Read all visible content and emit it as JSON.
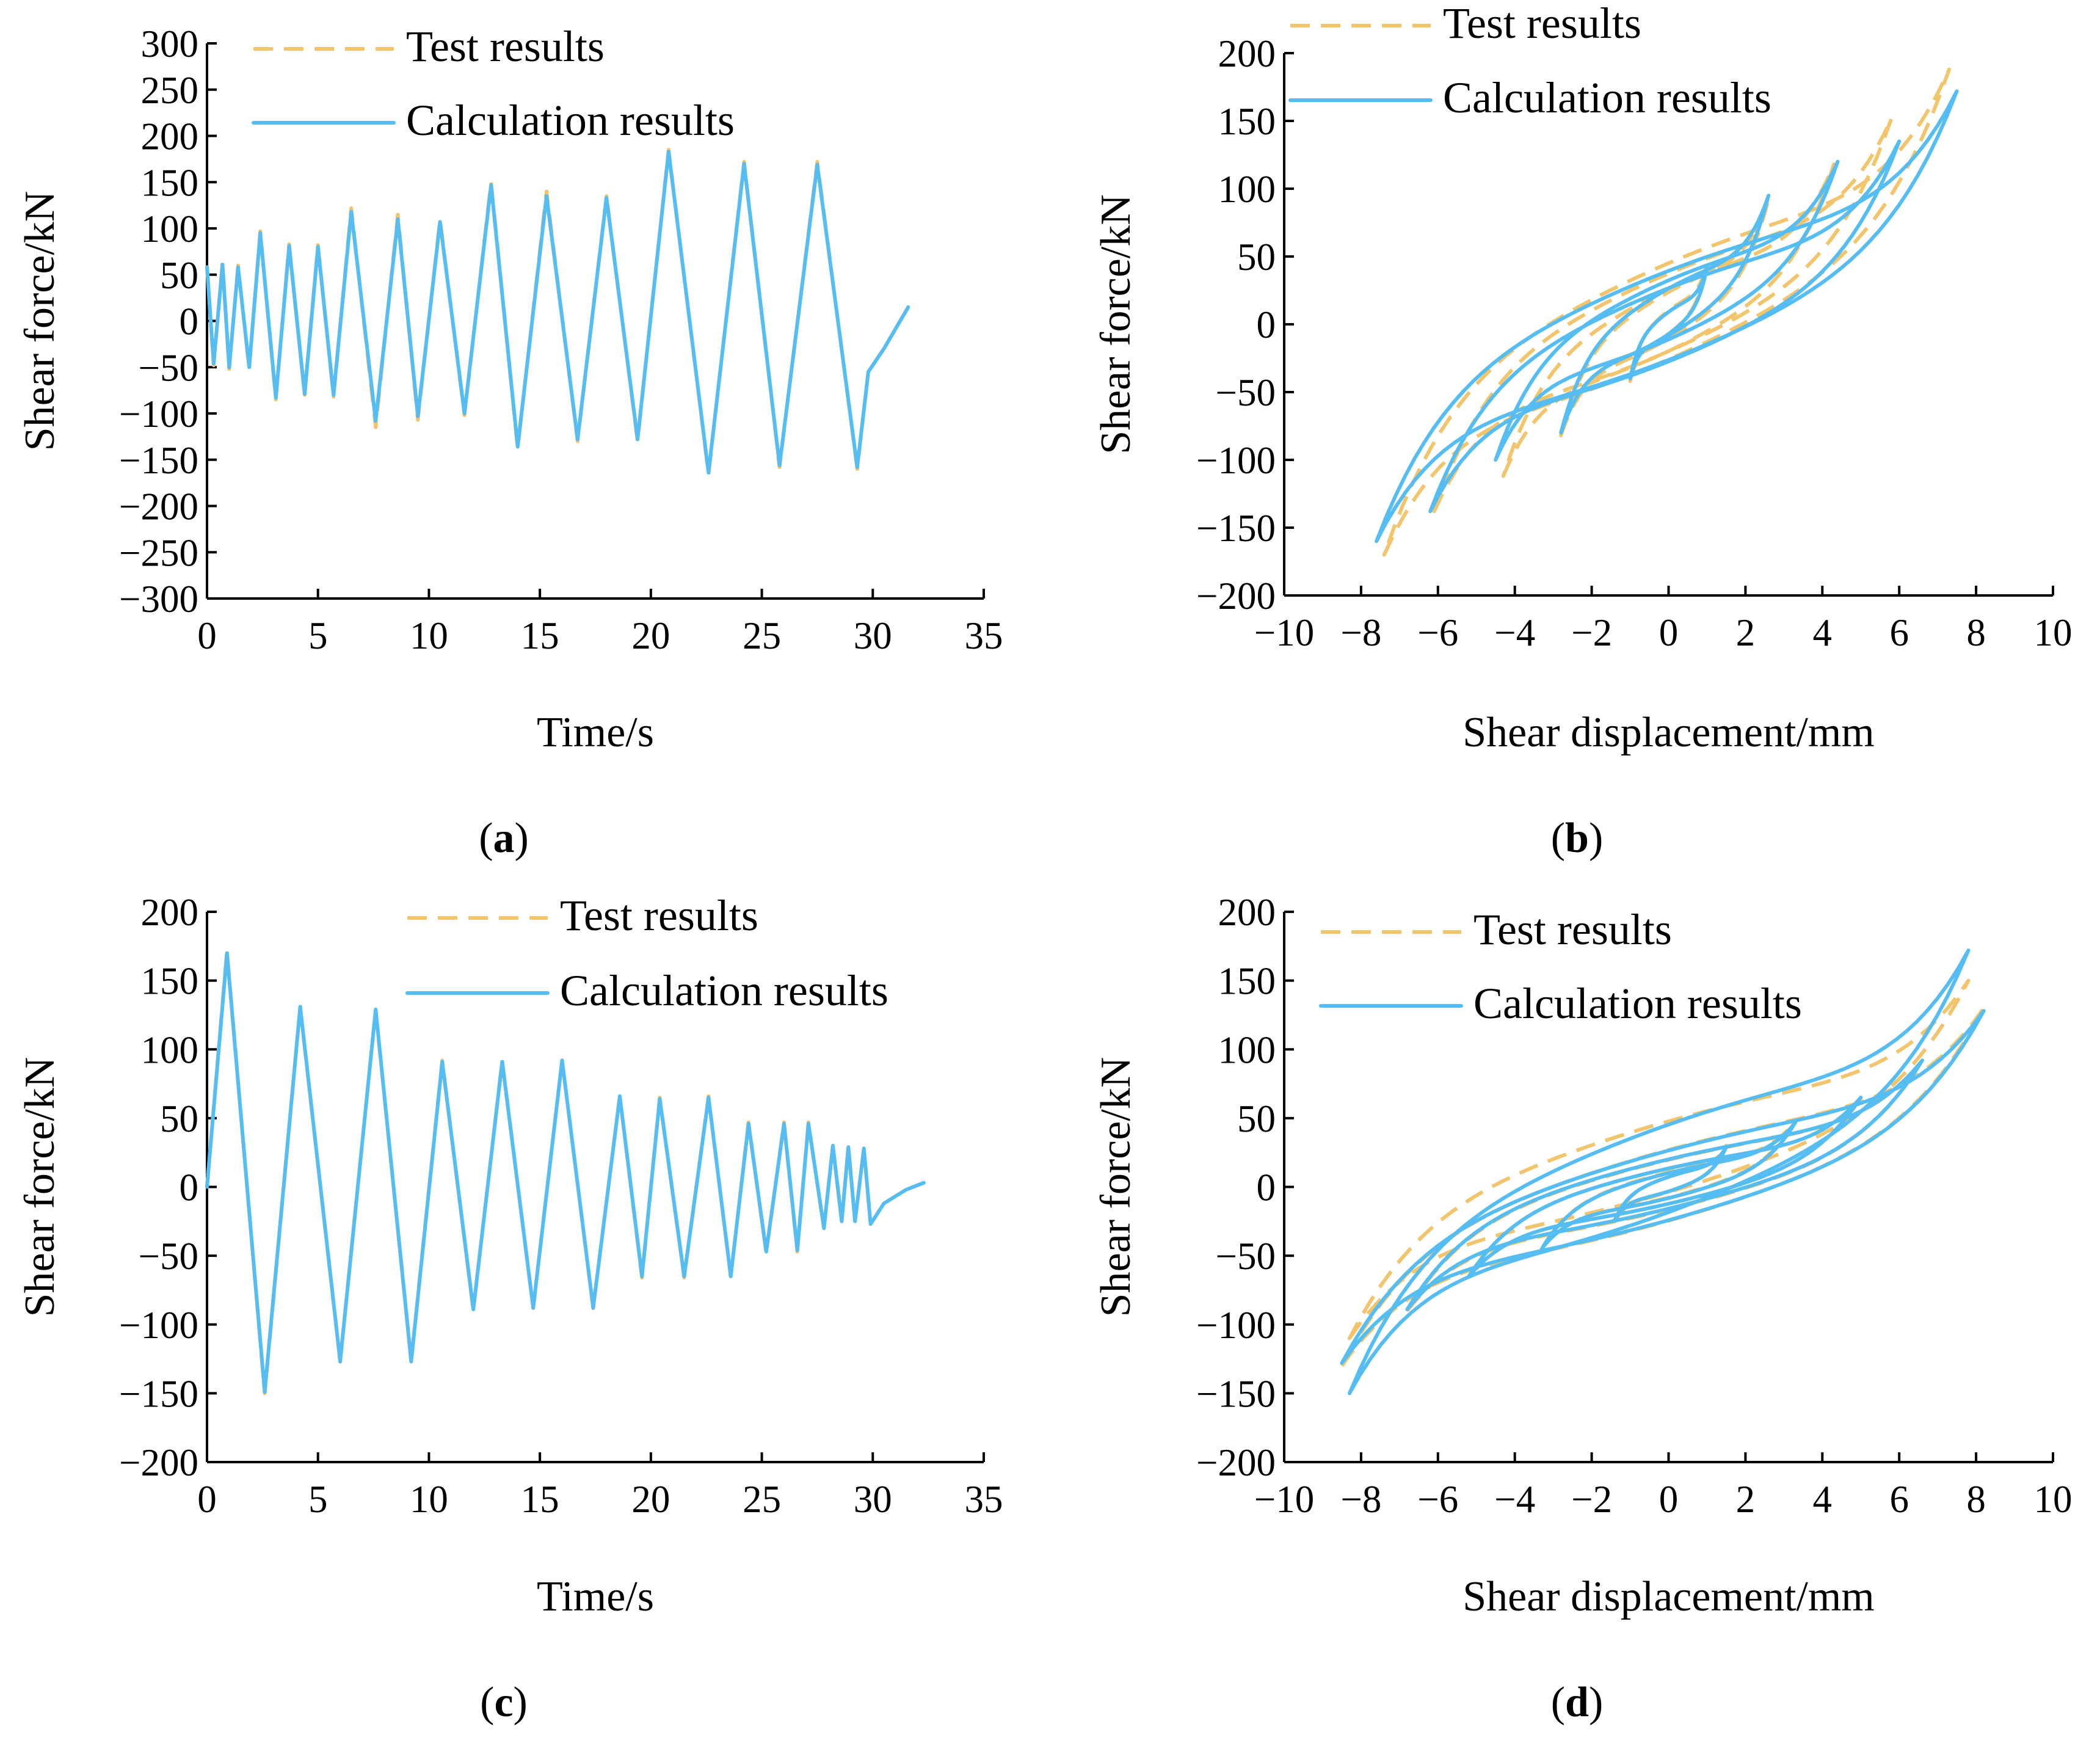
{
  "colors": {
    "test": "#F2C46B",
    "calc": "#55BDF2",
    "axis": "#000000"
  },
  "chart_data": [
    {
      "id": "a",
      "caption": {
        "open": "(",
        "letter": "a",
        "close": ")"
      },
      "type": "line",
      "xlabel": "Time/s",
      "ylabel": "Shear force/kN",
      "xlim": [
        0,
        35
      ],
      "ylim": [
        -300,
        300
      ],
      "xticks": [
        0,
        5,
        10,
        15,
        20,
        25,
        30,
        35
      ],
      "yticks": [
        -300,
        -250,
        -200,
        -150,
        -100,
        -50,
        0,
        50,
        100,
        150,
        200,
        250,
        300
      ],
      "tick_labels_x": [
        "0",
        "5",
        "10",
        "15",
        "20",
        "25",
        "30",
        "35"
      ],
      "tick_labels_y": [
        "−300",
        "−250",
        "−200",
        "−150",
        "−100",
        "−50",
        "0",
        "50",
        "100",
        "150",
        "200",
        "250",
        "300"
      ],
      "legend": [
        "Test results",
        "Calculation results"
      ],
      "legend_position": "top-right",
      "series": [
        {
          "name": "Test results",
          "style": "dashed",
          "points": [
            [
              0,
              60
            ],
            [
              0.3,
              -48
            ],
            [
              0.7,
              63
            ],
            [
              1.0,
              -52
            ],
            [
              1.4,
              60
            ],
            [
              1.9,
              -52
            ],
            [
              2.4,
              97
            ],
            [
              3.1,
              -85
            ],
            [
              3.7,
              83
            ],
            [
              4.4,
              -80
            ],
            [
              5.0,
              82
            ],
            [
              5.7,
              -82
            ],
            [
              6.5,
              122
            ],
            [
              7.6,
              -115
            ],
            [
              8.6,
              115
            ],
            [
              9.5,
              -107
            ],
            [
              10.5,
              110
            ],
            [
              11.6,
              -102
            ],
            [
              12.8,
              150
            ],
            [
              14.0,
              -138
            ],
            [
              15.3,
              140
            ],
            [
              16.7,
              -130
            ],
            [
              18.0,
              135
            ],
            [
              19.4,
              -130
            ],
            [
              20.8,
              185
            ],
            [
              22.6,
              -166
            ],
            [
              24.2,
              172
            ],
            [
              25.8,
              -158
            ],
            [
              27.5,
              172
            ],
            [
              29.3,
              -160
            ],
            [
              29.8,
              -55
            ],
            [
              30.5,
              -30
            ],
            [
              31.6,
              15
            ]
          ]
        },
        {
          "name": "Calculation results",
          "style": "solid",
          "points": [
            [
              0,
              58
            ],
            [
              0.3,
              -46
            ],
            [
              0.7,
              61
            ],
            [
              1.0,
              -50
            ],
            [
              1.4,
              58
            ],
            [
              1.9,
              -50
            ],
            [
              2.4,
              95
            ],
            [
              3.1,
              -83
            ],
            [
              3.7,
              81
            ],
            [
              4.4,
              -79
            ],
            [
              5.0,
              80
            ],
            [
              5.7,
              -80
            ],
            [
              6.5,
              118
            ],
            [
              7.6,
              -108
            ],
            [
              8.6,
              110
            ],
            [
              9.5,
              -103
            ],
            [
              10.5,
              107
            ],
            [
              11.6,
              -100
            ],
            [
              12.8,
              147
            ],
            [
              14.0,
              -136
            ],
            [
              15.3,
              135
            ],
            [
              16.7,
              -128
            ],
            [
              18.0,
              133
            ],
            [
              19.4,
              -128
            ],
            [
              20.8,
              183
            ],
            [
              22.6,
              -164
            ],
            [
              24.2,
              170
            ],
            [
              25.8,
              -156
            ],
            [
              27.5,
              169
            ],
            [
              29.3,
              -158
            ],
            [
              29.8,
              -55
            ],
            [
              30.5,
              -30
            ],
            [
              31.6,
              15
            ]
          ]
        }
      ]
    },
    {
      "id": "b",
      "caption": {
        "open": "(",
        "letter": "b",
        "close": ")"
      },
      "type": "line",
      "xlabel": "Shear displacement/mm",
      "ylabel": "Shear force/kN",
      "xlim": [
        -10,
        10
      ],
      "ylim": [
        -200,
        200
      ],
      "xticks": [
        -10,
        -8,
        -6,
        -4,
        -2,
        0,
        2,
        4,
        6,
        8,
        10
      ],
      "yticks": [
        -200,
        -150,
        -100,
        -50,
        0,
        50,
        100,
        150,
        200
      ],
      "tick_labels_x": [
        "−10",
        "−8",
        "−6",
        "−4",
        "−2",
        "0",
        "2",
        "4",
        "6",
        "8",
        "10"
      ],
      "tick_labels_y": [
        "−200",
        "−150",
        "−100",
        "−50",
        "0",
        "50",
        "100",
        "150",
        "200"
      ],
      "legend": [
        "Test results",
        "Calculation results"
      ],
      "legend_position": "top-left",
      "series": [
        {
          "name": "Test results",
          "style": "dashed",
          "loops": [
            {
              "xmax": 1.0,
              "fmax": 45,
              "xmin": -1.0,
              "fmin": -42
            },
            {
              "xmax": 2.6,
              "fmax": 92,
              "xmin": -2.8,
              "fmin": -82
            },
            {
              "xmax": 4.3,
              "fmax": 118,
              "xmin": -4.3,
              "fmin": -112
            },
            {
              "xmax": 5.8,
              "fmax": 152,
              "xmin": -6.1,
              "fmin": -138
            },
            {
              "xmax": 7.3,
              "fmax": 188,
              "xmin": -7.4,
              "fmin": -170
            }
          ]
        },
        {
          "name": "Calculation results",
          "style": "solid",
          "loops": [
            {
              "xmax": 1.0,
              "fmax": 42,
              "xmin": -1.0,
              "fmin": -40
            },
            {
              "xmax": 2.6,
              "fmax": 95,
              "xmin": -2.8,
              "fmin": -80
            },
            {
              "xmax": 4.4,
              "fmax": 120,
              "xmin": -4.5,
              "fmin": -100
            },
            {
              "xmax": 6.0,
              "fmax": 135,
              "xmin": -6.2,
              "fmin": -138
            },
            {
              "xmax": 7.5,
              "fmax": 172,
              "xmin": -7.6,
              "fmin": -160
            }
          ]
        }
      ]
    },
    {
      "id": "c",
      "caption": {
        "open": "(",
        "letter": "c",
        "close": ")"
      },
      "type": "line",
      "xlabel": "Time/s",
      "ylabel": "Shear force/kN",
      "xlim": [
        0,
        35
      ],
      "ylim": [
        -200,
        200
      ],
      "xticks": [
        0,
        5,
        10,
        15,
        20,
        25,
        30,
        35
      ],
      "yticks": [
        -200,
        -150,
        -100,
        -50,
        0,
        50,
        100,
        150,
        200
      ],
      "tick_labels_x": [
        "0",
        "5",
        "10",
        "15",
        "20",
        "25",
        "30",
        "35"
      ],
      "tick_labels_y": [
        "−200",
        "−150",
        "−100",
        "−50",
        "0",
        "50",
        "100",
        "150",
        "200"
      ],
      "legend": [
        "Test results",
        "Calculation results"
      ],
      "legend_position": "top-right",
      "series": [
        {
          "name": "Test results",
          "style": "dashed",
          "points": [
            [
              0,
              0
            ],
            [
              0.9,
              172
            ],
            [
              2.6,
              -150
            ],
            [
              4.2,
              130
            ],
            [
              6.0,
              -126
            ],
            [
              7.6,
              128
            ],
            [
              9.2,
              -126
            ],
            [
              10.6,
              92
            ],
            [
              12.0,
              -90
            ],
            [
              13.3,
              92
            ],
            [
              14.7,
              -88
            ],
            [
              16.0,
              92
            ],
            [
              17.4,
              -88
            ],
            [
              18.6,
              66
            ],
            [
              19.6,
              -66
            ],
            [
              20.4,
              65
            ],
            [
              21.5,
              -66
            ],
            [
              22.6,
              66
            ],
            [
              23.6,
              -65
            ],
            [
              24.4,
              47
            ],
            [
              25.2,
              -48
            ],
            [
              26.0,
              47
            ],
            [
              26.6,
              -47
            ],
            [
              27.1,
              47
            ],
            [
              27.8,
              -30
            ],
            [
              28.2,
              30
            ],
            [
              28.6,
              -25
            ],
            [
              28.9,
              30
            ],
            [
              29.2,
              -25
            ],
            [
              29.6,
              28
            ],
            [
              29.9,
              -27
            ],
            [
              30.5,
              -12
            ],
            [
              31.5,
              -2
            ],
            [
              32.3,
              3
            ]
          ]
        },
        {
          "name": "Calculation results",
          "style": "solid",
          "points": [
            [
              0,
              0
            ],
            [
              0.9,
              170
            ],
            [
              2.6,
              -149
            ],
            [
              4.2,
              131
            ],
            [
              6.0,
              -127
            ],
            [
              7.6,
              129
            ],
            [
              9.2,
              -127
            ],
            [
              10.6,
              91
            ],
            [
              12.0,
              -89
            ],
            [
              13.3,
              91
            ],
            [
              14.7,
              -88
            ],
            [
              16.0,
              92
            ],
            [
              17.4,
              -88
            ],
            [
              18.6,
              66
            ],
            [
              19.6,
              -65
            ],
            [
              20.4,
              64
            ],
            [
              21.5,
              -65
            ],
            [
              22.6,
              65
            ],
            [
              23.6,
              -65
            ],
            [
              24.4,
              46
            ],
            [
              25.2,
              -47
            ],
            [
              26.0,
              46
            ],
            [
              26.6,
              -46
            ],
            [
              27.1,
              46
            ],
            [
              27.8,
              -30
            ],
            [
              28.2,
              30
            ],
            [
              28.6,
              -25
            ],
            [
              28.9,
              29
            ],
            [
              29.2,
              -25
            ],
            [
              29.6,
              28
            ],
            [
              29.9,
              -27
            ],
            [
              30.5,
              -12
            ],
            [
              31.5,
              -2
            ],
            [
              32.3,
              3
            ]
          ]
        }
      ]
    },
    {
      "id": "d",
      "caption": {
        "open": "(",
        "letter": "d",
        "close": ")"
      },
      "type": "line",
      "xlabel": "Shear displacement/mm",
      "ylabel": "Shear force/kN",
      "xlim": [
        -10,
        10
      ],
      "ylim": [
        -200,
        200
      ],
      "xticks": [
        -10,
        -8,
        -6,
        -4,
        -2,
        0,
        2,
        4,
        6,
        8,
        10
      ],
      "yticks": [
        -200,
        -150,
        -100,
        -50,
        0,
        50,
        100,
        150,
        200
      ],
      "tick_labels_x": [
        "−10",
        "−8",
        "−6",
        "−4",
        "−2",
        "0",
        "2",
        "4",
        "6",
        "8",
        "10"
      ],
      "tick_labels_y": [
        "−200",
        "−150",
        "−100",
        "−50",
        "0",
        "50",
        "100",
        "150",
        "200"
      ],
      "legend": [
        "Test results",
        "Calculation results"
      ],
      "legend_position": "top-left",
      "series": [
        {
          "name": "Test results",
          "style": "dashed",
          "loops": [
            {
              "xmax": 1.5,
              "fmax": 30,
              "xmin": -1.4,
              "fmin": -25
            },
            {
              "xmax": 3.3,
              "fmax": 48,
              "xmin": -3.3,
              "fmin": -45
            },
            {
              "xmax": 5.0,
              "fmax": 65,
              "xmin": -5.2,
              "fmin": -65
            },
            {
              "xmax": 6.6,
              "fmax": 92,
              "xmin": -6.8,
              "fmin": -90
            },
            {
              "xmax": 8.2,
              "fmax": 130,
              "xmin": -8.5,
              "fmin": -130
            },
            {
              "xmax": 7.8,
              "fmax": 150,
              "xmin": -8.3,
              "fmin": -110
            }
          ]
        },
        {
          "name": "Calculation results",
          "style": "solid",
          "loops": [
            {
              "xmax": 1.5,
              "fmax": 29,
              "xmin": -1.4,
              "fmin": -24
            },
            {
              "xmax": 3.3,
              "fmax": 47,
              "xmin": -3.3,
              "fmin": -45
            },
            {
              "xmax": 5.0,
              "fmax": 65,
              "xmin": -5.2,
              "fmin": -65
            },
            {
              "xmax": 6.6,
              "fmax": 92,
              "xmin": -6.8,
              "fmin": -89
            },
            {
              "xmax": 8.2,
              "fmax": 128,
              "xmin": -8.5,
              "fmin": -128
            },
            {
              "xmax": 7.8,
              "fmax": 172,
              "xmin": -8.3,
              "fmin": -150
            }
          ]
        }
      ]
    }
  ]
}
